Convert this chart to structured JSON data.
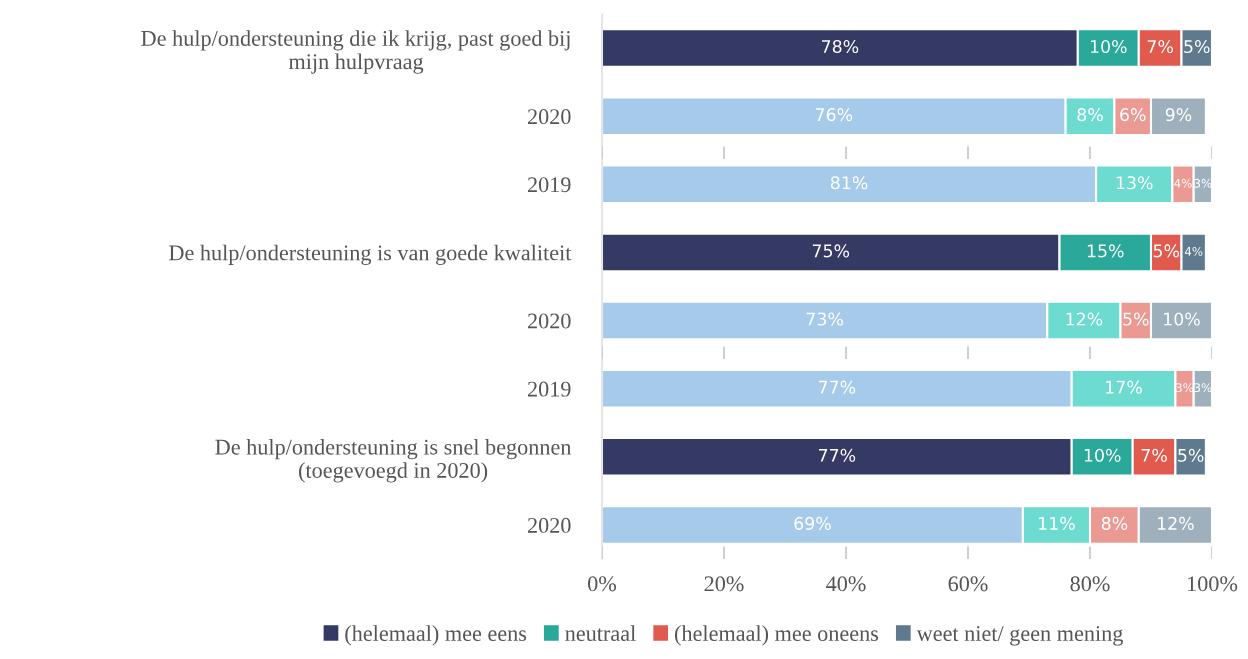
{
  "chart_data": {
    "type": "bar",
    "orientation": "horizontal",
    "stacked": true,
    "categories": [
      "De hulp/ondersteuning die ik krijg, past goed bij\nmijn hulpvraag",
      "2020",
      "2019",
      "De hulp/ondersteuning is van goede kwaliteit",
      "2020",
      "2019",
      "De hulp/ondersteuning is snel begonnen\n(toegevoegd in 2020)",
      "2020"
    ],
    "series": [
      {
        "name": "(helemaal) mee eens",
        "color": "#353a64",
        "colors": [
          "#353a64",
          "#a6cbea",
          "#a6cbea",
          "#353a64",
          "#a6cbea",
          "#a6cbea",
          "#353a64",
          "#a6cbea"
        ],
        "values": [
          78,
          76,
          81,
          75,
          73,
          77,
          77,
          69
        ],
        "value_labels": [
          "78%",
          "76%",
          "81%",
          "75%",
          "73%",
          "77%",
          "77%",
          "69%"
        ]
      },
      {
        "name": "neutraal",
        "color": "#2aa89a",
        "colors": [
          "#2aa89a",
          "#6ddbd0",
          "#6ddbd0",
          "#2aa89a",
          "#6ddbd0",
          "#6ddbd0",
          "#2aa89a",
          "#6ddbd0"
        ],
        "values": [
          10,
          8,
          12.5,
          15,
          12,
          17,
          10,
          11
        ],
        "value_labels": [
          "10%",
          "8%",
          "13%",
          "15%",
          "12%",
          "17%",
          "10%",
          "11%"
        ]
      },
      {
        "name": "(helemaal) mee oneens",
        "color": "#e05a4e",
        "colors": [
          "#e05a4e",
          "#eb9a93",
          "#eb9a93",
          "#e05a4e",
          "#eb9a93",
          "#eb9a93",
          "#e05a4e",
          "#eb9a93"
        ],
        "values": [
          7,
          6,
          3.5,
          5,
          5,
          3,
          7,
          8
        ],
        "value_labels": [
          "7%",
          "6%",
          "4%",
          "5%",
          "5%",
          "3%",
          "7%",
          "8%"
        ]
      },
      {
        "name": "weet niet/ geen mening",
        "color": "#5f7a8e",
        "colors": [
          "#5f7a8e",
          "#9fb0bd",
          "#9fb0bd",
          "#5f7a8e",
          "#9fb0bd",
          "#9fb0bd",
          "#5f7a8e",
          "#9fb0bd"
        ],
        "values": [
          5,
          9,
          3,
          4,
          10,
          3,
          5,
          12
        ],
        "value_labels": [
          "5%",
          "9%",
          "3%",
          "4%",
          "10%",
          "3%",
          "5%",
          "12%"
        ]
      }
    ],
    "xlim": [
      0,
      100
    ],
    "xticks": [
      {
        "value": 0,
        "label": "0%"
      },
      {
        "value": 20,
        "label": "20%"
      },
      {
        "value": 40,
        "label": "40%"
      },
      {
        "value": 60,
        "label": "60%"
      },
      {
        "value": 80,
        "label": "80%"
      },
      {
        "value": 100,
        "label": "100%"
      }
    ],
    "grid": "x",
    "legend": "bottom"
  }
}
